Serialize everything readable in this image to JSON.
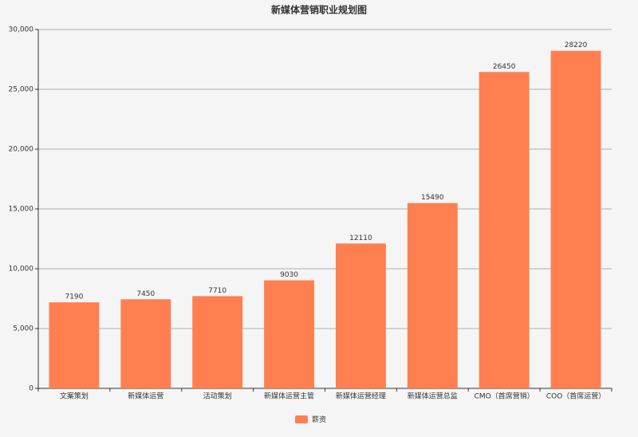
{
  "chart_data": {
    "type": "bar",
    "title": "新媒体营销职业规划图",
    "categories": [
      "文案策划",
      "新媒体运营",
      "活动策划",
      "新媒体运营主管",
      "新媒体运营经理",
      "新媒体运营总监",
      "CMO（首席营销）",
      "COO（首席运营）"
    ],
    "series": [
      {
        "name": "薪资",
        "color": "#ff7f50",
        "values": [
          7190,
          7450,
          7710,
          9030,
          12110,
          15490,
          26450,
          28220
        ]
      }
    ],
    "ylim": [
      0,
      30000
    ],
    "yticks": [
      0,
      {
        "value": 5000,
        "label": "5,000"
      },
      {
        "value": 10000,
        "label": "10,000"
      },
      {
        "value": 15000,
        "label": "15,000"
      },
      {
        "value": 20000,
        "label": "20,000"
      },
      {
        "value": 25000,
        "label": "25,000"
      },
      {
        "value": 30000,
        "label": "30,000"
      }
    ],
    "grid": true,
    "legend": "bottom"
  }
}
